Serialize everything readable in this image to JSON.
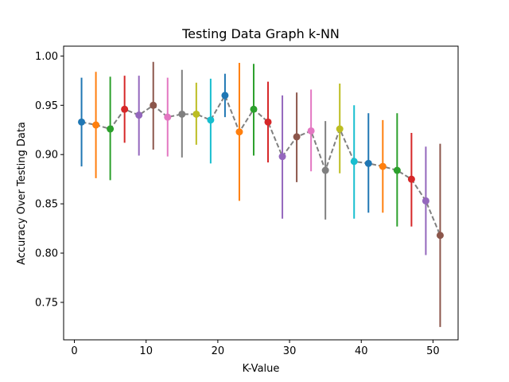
{
  "chart_data": {
    "type": "scatter",
    "title": "Testing Data Graph k-NN",
    "xlabel": "K-Value",
    "ylabel": "Accuracy Over Testing Data",
    "xlim": [
      -1.5,
      53.5
    ],
    "ylim": [
      0.712,
      1.01
    ],
    "xticks": [
      0,
      10,
      20,
      30,
      40,
      50
    ],
    "xtick_labels": [
      "0",
      "10",
      "20",
      "30",
      "40",
      "50"
    ],
    "yticks": [
      0.75,
      0.8,
      0.85,
      0.9,
      0.95,
      1.0
    ],
    "ytick_labels": [
      "0.75",
      "0.80",
      "0.85",
      "0.90",
      "0.95",
      "1.00"
    ],
    "grid": false,
    "trend_line": {
      "style": "dashed",
      "color": "#808080"
    },
    "points": [
      {
        "k": 1,
        "mean": 0.933,
        "low": 0.888,
        "high": 0.978,
        "color": "#1f77b4"
      },
      {
        "k": 3,
        "mean": 0.93,
        "low": 0.876,
        "high": 0.984,
        "color": "#ff7f0e"
      },
      {
        "k": 5,
        "mean": 0.926,
        "low": 0.874,
        "high": 0.979,
        "color": "#2ca02c"
      },
      {
        "k": 7,
        "mean": 0.946,
        "low": 0.912,
        "high": 0.98,
        "color": "#d62728"
      },
      {
        "k": 9,
        "mean": 0.94,
        "low": 0.899,
        "high": 0.98,
        "color": "#9467bd"
      },
      {
        "k": 11,
        "mean": 0.95,
        "low": 0.905,
        "high": 0.994,
        "color": "#8c564b"
      },
      {
        "k": 13,
        "mean": 0.938,
        "low": 0.898,
        "high": 0.978,
        "color": "#e377c2"
      },
      {
        "k": 15,
        "mean": 0.941,
        "low": 0.897,
        "high": 0.986,
        "color": "#7f7f7f"
      },
      {
        "k": 17,
        "mean": 0.941,
        "low": 0.91,
        "high": 0.973,
        "color": "#bcbd22"
      },
      {
        "k": 19,
        "mean": 0.935,
        "low": 0.891,
        "high": 0.977,
        "color": "#17becf"
      },
      {
        "k": 21,
        "mean": 0.96,
        "low": 0.938,
        "high": 0.982,
        "color": "#1f77b4"
      },
      {
        "k": 23,
        "mean": 0.923,
        "low": 0.853,
        "high": 0.993,
        "color": "#ff7f0e"
      },
      {
        "k": 25,
        "mean": 0.946,
        "low": 0.899,
        "high": 0.992,
        "color": "#2ca02c"
      },
      {
        "k": 27,
        "mean": 0.933,
        "low": 0.892,
        "high": 0.974,
        "color": "#d62728"
      },
      {
        "k": 29,
        "mean": 0.898,
        "low": 0.835,
        "high": 0.96,
        "color": "#9467bd"
      },
      {
        "k": 31,
        "mean": 0.918,
        "low": 0.872,
        "high": 0.963,
        "color": "#8c564b"
      },
      {
        "k": 33,
        "mean": 0.924,
        "low": 0.883,
        "high": 0.966,
        "color": "#e377c2"
      },
      {
        "k": 35,
        "mean": 0.884,
        "low": 0.834,
        "high": 0.934,
        "color": "#7f7f7f"
      },
      {
        "k": 37,
        "mean": 0.926,
        "low": 0.881,
        "high": 0.972,
        "color": "#bcbd22"
      },
      {
        "k": 39,
        "mean": 0.893,
        "low": 0.835,
        "high": 0.95,
        "color": "#17becf"
      },
      {
        "k": 41,
        "mean": 0.891,
        "low": 0.841,
        "high": 0.942,
        "color": "#1f77b4"
      },
      {
        "k": 43,
        "mean": 0.888,
        "low": 0.841,
        "high": 0.935,
        "color": "#ff7f0e"
      },
      {
        "k": 45,
        "mean": 0.884,
        "low": 0.827,
        "high": 0.942,
        "color": "#2ca02c"
      },
      {
        "k": 47,
        "mean": 0.875,
        "low": 0.827,
        "high": 0.922,
        "color": "#d62728"
      },
      {
        "k": 49,
        "mean": 0.853,
        "low": 0.798,
        "high": 0.908,
        "color": "#9467bd"
      },
      {
        "k": 51,
        "mean": 0.818,
        "low": 0.725,
        "high": 0.911,
        "color": "#8c564b"
      }
    ]
  }
}
